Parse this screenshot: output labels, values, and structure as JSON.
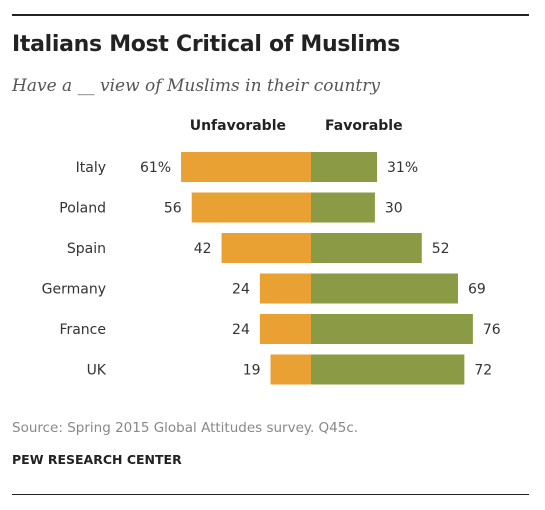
{
  "header": {
    "title": "Italians Most Critical of Muslims",
    "subtitle": "Have a __ view of Muslims in their country"
  },
  "footer": {
    "source": "Source: Spring 2015 Global Attitudes survey. Q45c.",
    "organization": "PEW RESEARCH CENTER"
  },
  "colors": {
    "unfavorable": "#E9A133",
    "favorable": "#8A9A45",
    "label_text": "#333333"
  },
  "chart_data": {
    "type": "bar",
    "orientation": "horizontal-diverging",
    "title": "Italians Most Critical of Muslims",
    "subtitle": "Have a __ view of Muslims in their country",
    "categories": [
      "Italy",
      "Poland",
      "Spain",
      "Germany",
      "France",
      "UK"
    ],
    "series": [
      {
        "name": "Unfavorable",
        "values": [
          61,
          56,
          42,
          24,
          24,
          19
        ],
        "labels": [
          "61%",
          "56",
          "42",
          "24",
          "24",
          "19"
        ]
      },
      {
        "name": "Favorable",
        "values": [
          31,
          30,
          52,
          69,
          76,
          72
        ],
        "labels": [
          "31%",
          "30",
          "52",
          "69",
          "76",
          "72"
        ]
      }
    ],
    "xlim": [
      0,
      100
    ],
    "grid": false,
    "legend": "top"
  }
}
